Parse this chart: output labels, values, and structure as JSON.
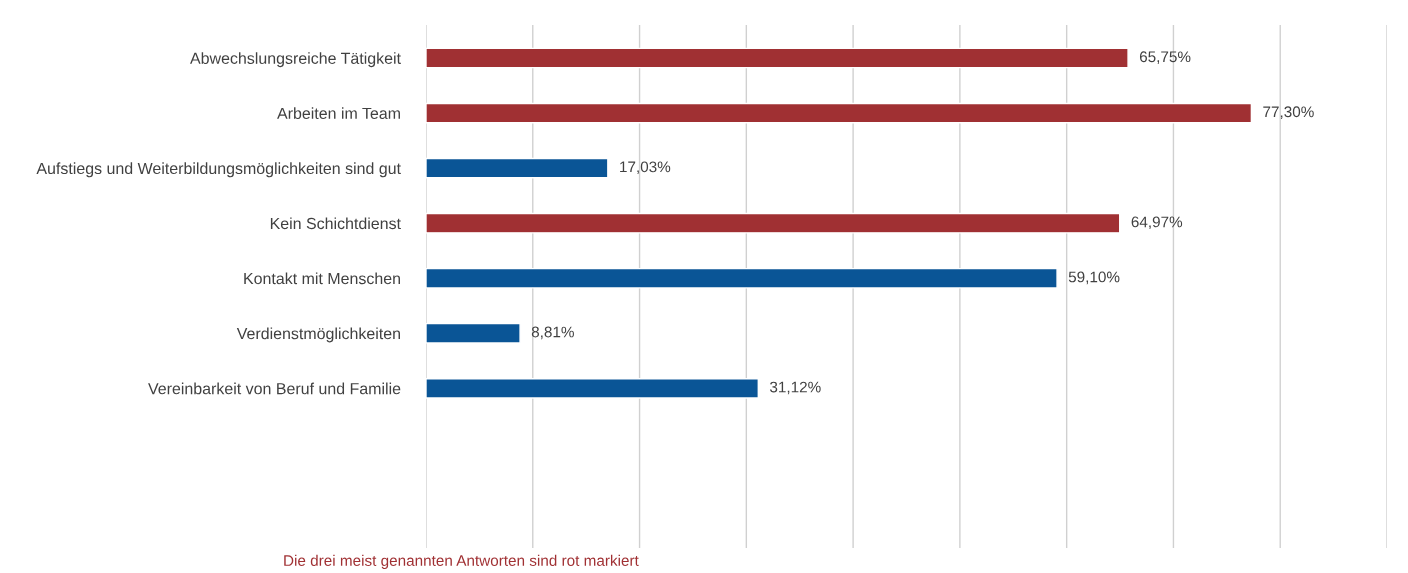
{
  "chart_data": {
    "type": "bar",
    "orientation": "horizontal",
    "categories": [
      "Abwechslungsreiche Tätigkeit",
      "Arbeiten im Team",
      "Aufstiegs und Weiterbildungsmöglichkeiten sind gut",
      "Kein Schichtdienst",
      "Kontakt mit Menschen",
      "Verdienstmöglichkeiten",
      "Vereinbarkeit von Beruf und Familie"
    ],
    "values": [
      65.75,
      77.3,
      17.03,
      64.97,
      59.1,
      8.81,
      31.12
    ],
    "colors": [
      "#a03033",
      "#a03033",
      "#0a5596",
      "#a03033",
      "#0a5596",
      "#0a5596",
      "#0a5596"
    ],
    "value_labels": [
      "65,75%",
      "77,30%",
      "17,03%",
      "64,97%",
      "59,10%",
      "8,81%",
      "31,12%"
    ],
    "xlim": [
      0,
      90
    ],
    "xticks": [
      {
        "value": 0,
        "label": null
      },
      {
        "value": 10,
        "label": null
      },
      {
        "value": 20,
        "label": null
      },
      {
        "value": 30,
        "label": null
      },
      {
        "value": 40,
        "label": null
      },
      {
        "value": 50,
        "label": null
      },
      {
        "value": 60,
        "label": null
      },
      {
        "value": 70,
        "label": null
      },
      {
        "value": 80,
        "label": null
      },
      {
        "value": 90,
        "label": null
      }
    ],
    "grid": "x",
    "tick_labels": "y",
    "annotations": [
      "Die drei meist genannten Antworten sind rot markiert"
    ]
  }
}
